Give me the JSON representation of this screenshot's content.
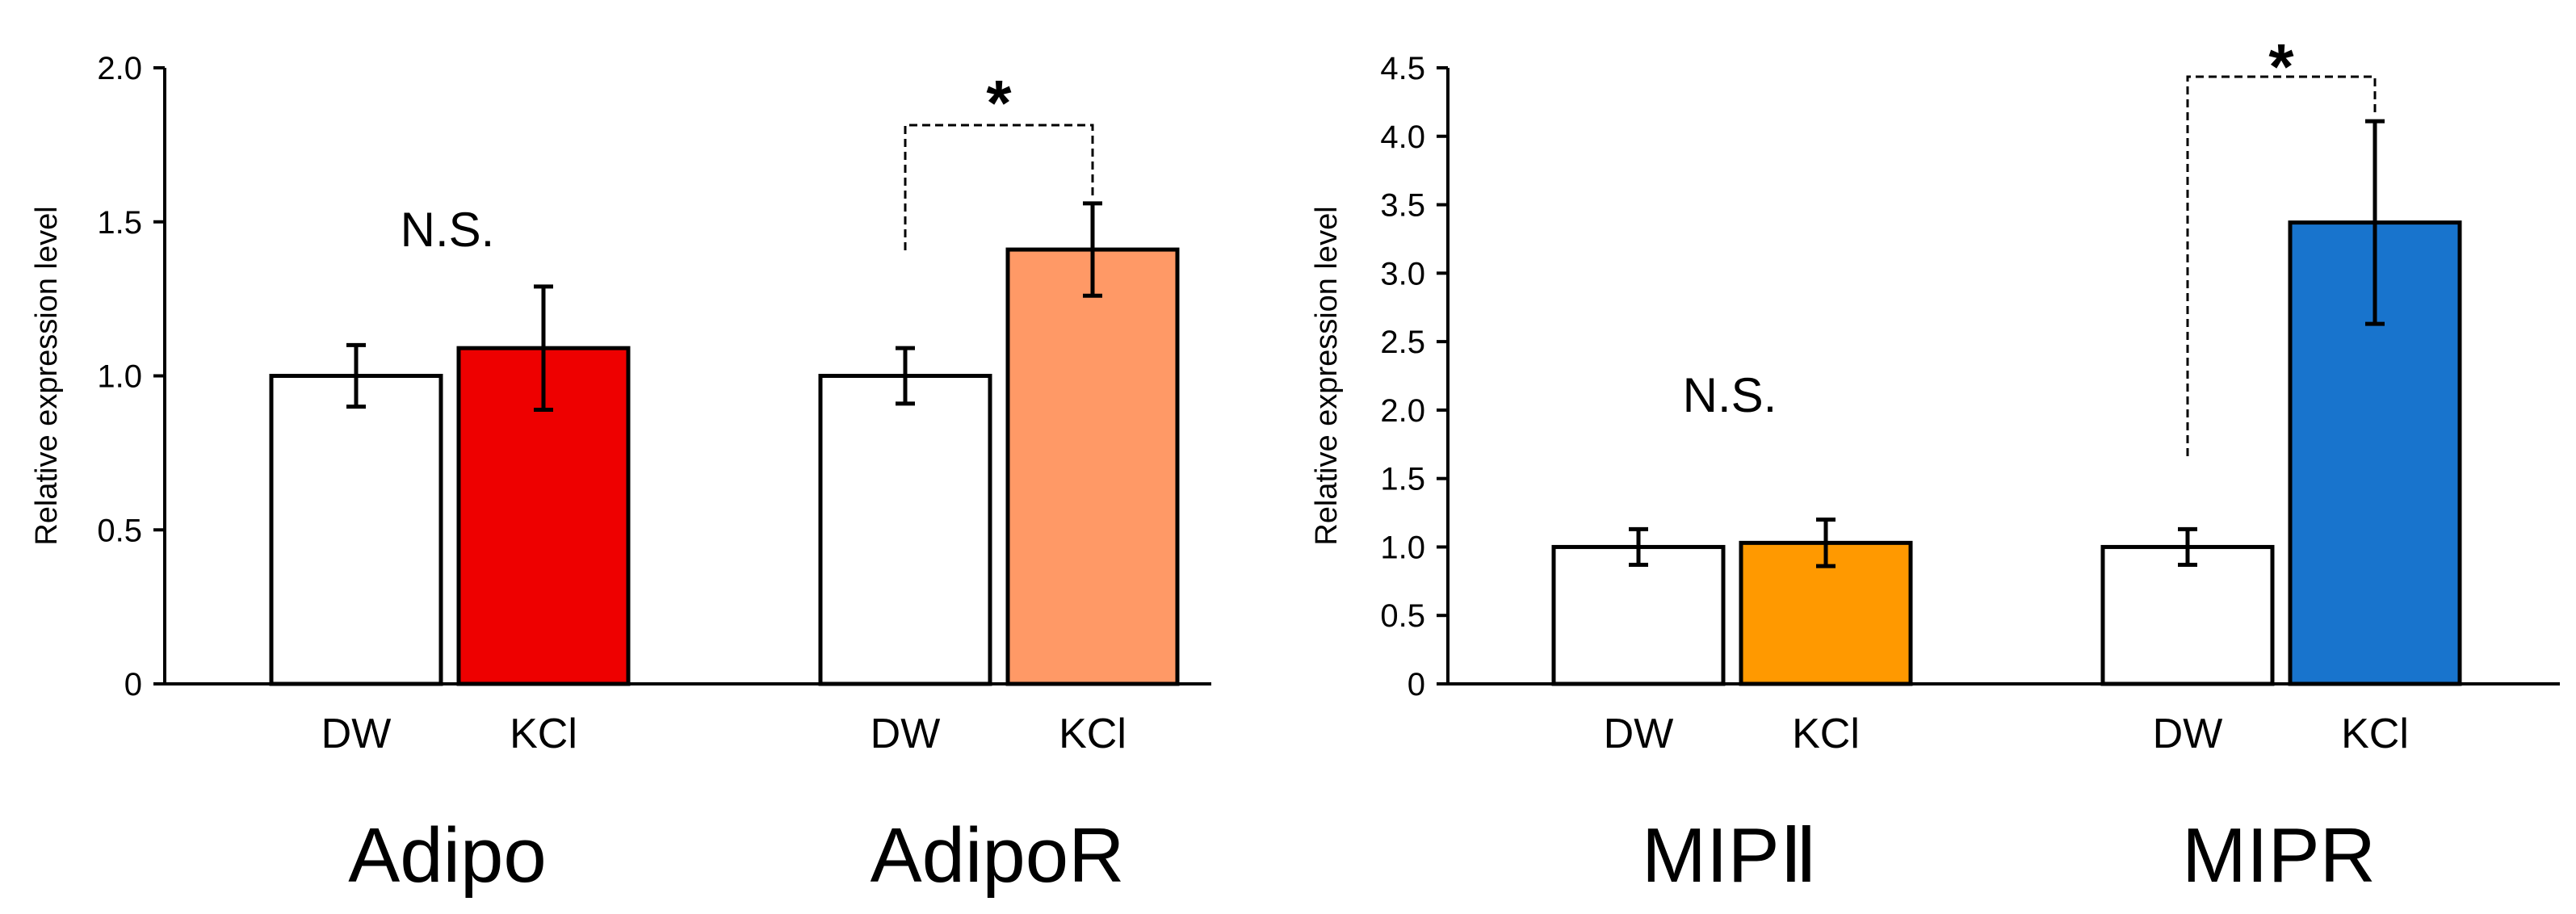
{
  "chart_data": [
    {
      "type": "bar",
      "ylabel": "Relative expression level",
      "ylim": [
        0,
        2.0
      ],
      "yticks": [
        0,
        0.5,
        1.0,
        1.5,
        2.0
      ],
      "ytick_labels": [
        "0",
        "0.5",
        "1.0",
        "1.5",
        "2.0"
      ],
      "groups": [
        {
          "name": "Adipo",
          "annotation": "N.S.",
          "bars": [
            {
              "category": "DW",
              "value": 1.0,
              "error": 0.1,
              "color": "#ffffff"
            },
            {
              "category": "KCl",
              "value": 1.09,
              "error": 0.2,
              "color": "#ee0000"
            }
          ]
        },
        {
          "name": "AdipoR",
          "annotation": "*",
          "bars": [
            {
              "category": "DW",
              "value": 1.0,
              "error": 0.09,
              "color": "#ffffff"
            },
            {
              "category": "KCl",
              "value": 1.41,
              "error": 0.15,
              "color": "#ff9966"
            }
          ]
        }
      ]
    },
    {
      "type": "bar",
      "ylabel": "Relative expression level",
      "ylim": [
        0,
        4.5
      ],
      "yticks": [
        0,
        0.5,
        1.0,
        1.5,
        2.0,
        2.5,
        3.0,
        3.5,
        4.0,
        4.5
      ],
      "ytick_labels": [
        "0",
        "0.5",
        "1.0",
        "1.5",
        "2.0",
        "2.5",
        "3.0",
        "3.5",
        "4.0",
        "4.5"
      ],
      "groups": [
        {
          "name": "MIPⅡ",
          "annotation": "N.S.",
          "bars": [
            {
              "category": "DW",
              "value": 1.0,
              "error": 0.13,
              "color": "#ffffff"
            },
            {
              "category": "KCl",
              "value": 1.03,
              "error": 0.17,
              "color": "#ff9900"
            }
          ]
        },
        {
          "name": "MIPR",
          "annotation": "*",
          "bars": [
            {
              "category": "DW",
              "value": 1.0,
              "error": 0.13,
              "color": "#ffffff"
            },
            {
              "category": "KCl",
              "value": 3.37,
              "error": 0.74,
              "color": "#1874cd"
            }
          ]
        }
      ]
    }
  ]
}
